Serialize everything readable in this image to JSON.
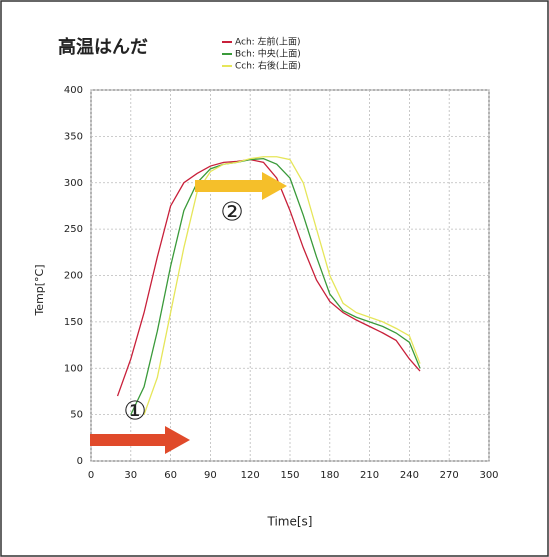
{
  "chart_data": {
    "type": "line",
    "title": "高温はんだ",
    "xlabel": "Time[s]",
    "ylabel": "Temp[°C]",
    "xlim": [
      0,
      300
    ],
    "xticks": [
      0,
      30,
      60,
      90,
      120,
      150,
      180,
      210,
      240,
      270,
      300
    ],
    "ylim": [
      0,
      400
    ],
    "yticks": [
      0,
      50,
      100,
      150,
      200,
      250,
      300,
      350,
      400
    ],
    "grid": true,
    "annotations": [
      "①",
      "②"
    ],
    "series": [
      {
        "name": "Ach: 左前(上面)",
        "color": "#c8203a",
        "x": [
          20,
          30,
          40,
          50,
          60,
          70,
          80,
          90,
          100,
          110,
          120,
          130,
          140,
          150,
          160,
          170,
          180,
          190,
          200,
          210,
          220,
          230,
          240,
          248
        ],
        "values": [
          70,
          110,
          160,
          220,
          275,
          300,
          310,
          318,
          322,
          323,
          325,
          322,
          305,
          270,
          230,
          195,
          172,
          160,
          152,
          145,
          138,
          130,
          110,
          97
        ]
      },
      {
        "name": "Bch: 中央(上面)",
        "color": "#3a9a3a",
        "x": [
          30,
          40,
          50,
          60,
          70,
          80,
          90,
          100,
          110,
          120,
          130,
          140,
          150,
          160,
          170,
          180,
          190,
          200,
          210,
          220,
          230,
          240,
          248
        ],
        "values": [
          50,
          80,
          140,
          210,
          270,
          300,
          315,
          320,
          322,
          325,
          326,
          320,
          305,
          265,
          220,
          180,
          162,
          155,
          150,
          145,
          138,
          128,
          100
        ]
      },
      {
        "name": "Cch: 右後(上面)",
        "color": "#e6e65a",
        "x": [
          40,
          50,
          60,
          70,
          80,
          90,
          100,
          110,
          120,
          130,
          140,
          150,
          160,
          170,
          180,
          190,
          200,
          210,
          220,
          230,
          240,
          248
        ],
        "values": [
          50,
          90,
          160,
          230,
          290,
          312,
          320,
          322,
          326,
          328,
          328,
          325,
          300,
          250,
          200,
          170,
          160,
          155,
          150,
          143,
          135,
          105
        ]
      }
    ]
  }
}
